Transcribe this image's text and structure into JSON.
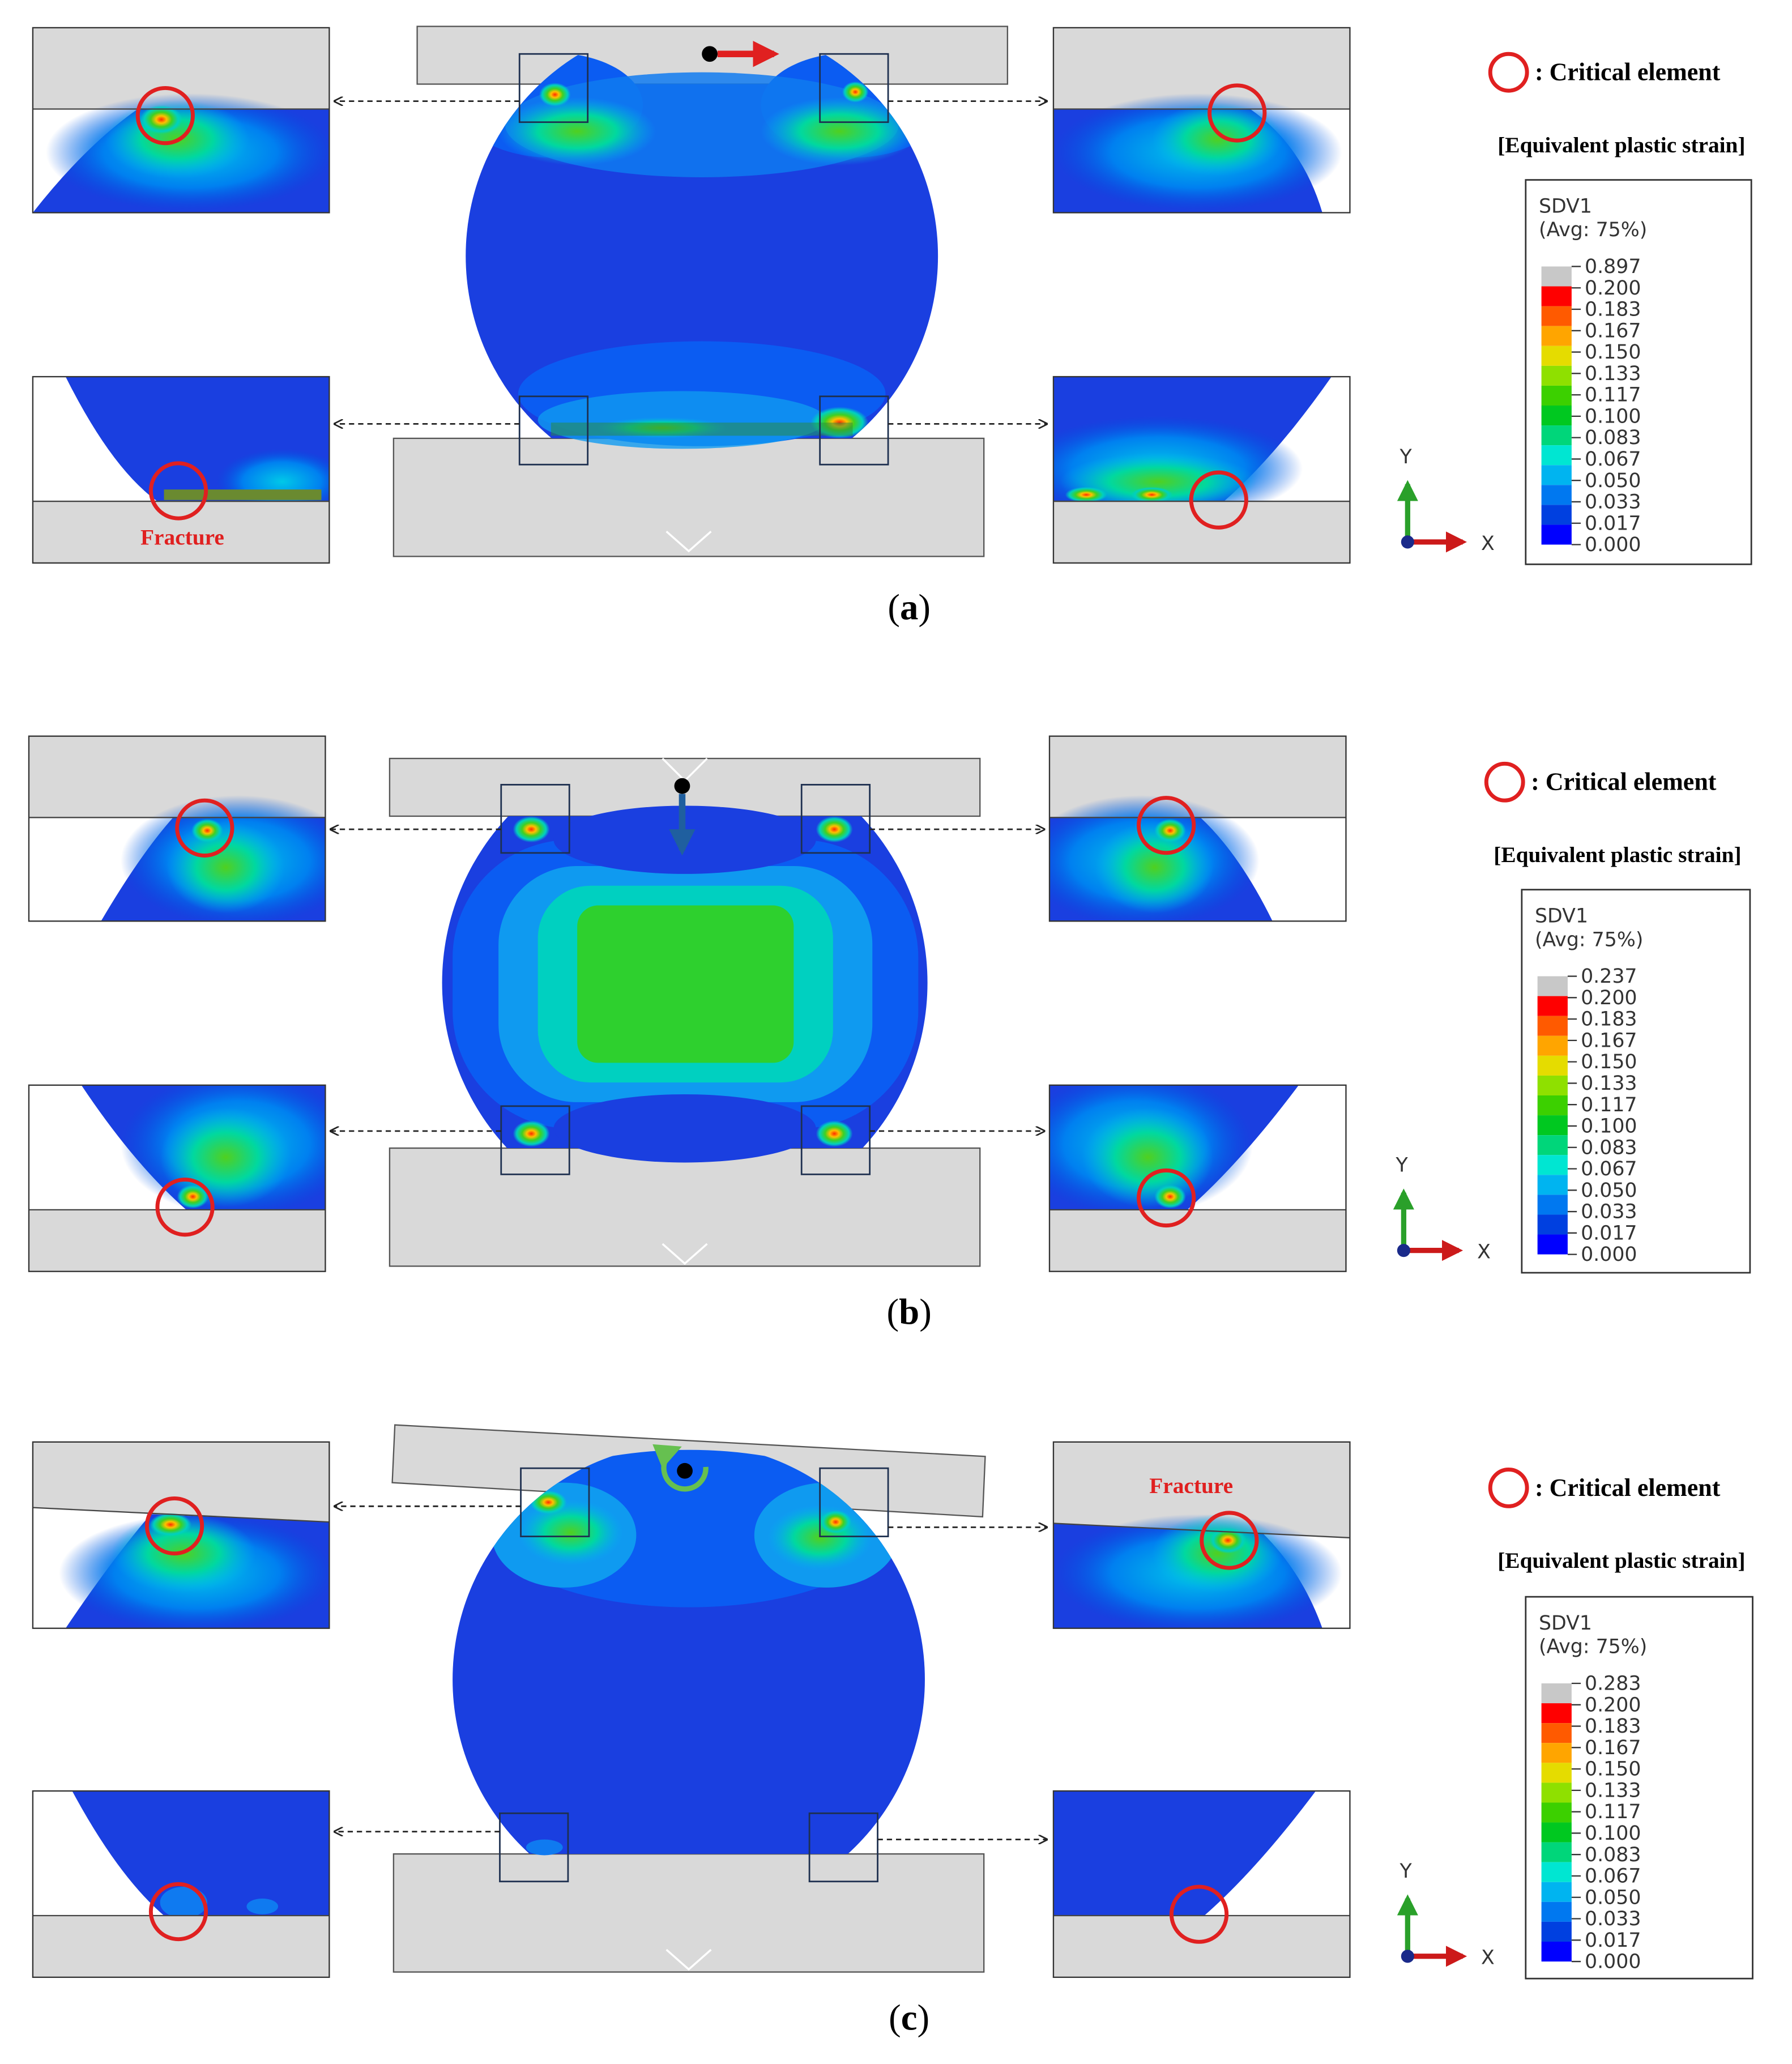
{
  "panels": [
    {
      "id": "a",
      "caption": "(a)",
      "caption_letter": "a",
      "legend_marker_label": ": Critical element",
      "legend_title": "[Equivalent plastic strain]",
      "variable": "SDV1",
      "averaging": "(Avg: 75%)",
      "values": [
        "0.897",
        "0.200",
        "0.183",
        "0.167",
        "0.150",
        "0.133",
        "0.117",
        "0.100",
        "0.083",
        "0.067",
        "0.050",
        "0.033",
        "0.017",
        "0.000"
      ],
      "fracture_label": "Fracture",
      "fracture_panel": "bottom-left",
      "loading": "shear-x"
    },
    {
      "id": "b",
      "caption": "(b)",
      "caption_letter": "b",
      "legend_marker_label": ": Critical element",
      "legend_title": "[Equivalent plastic strain]",
      "variable": "SDV1",
      "averaging": "(Avg: 75%)",
      "values": [
        "0.237",
        "0.200",
        "0.183",
        "0.167",
        "0.150",
        "0.133",
        "0.117",
        "0.100",
        "0.083",
        "0.067",
        "0.050",
        "0.033",
        "0.017",
        "0.000"
      ],
      "fracture_label": "",
      "fracture_panel": "",
      "loading": "compression-y"
    },
    {
      "id": "c",
      "caption": "(c)",
      "caption_letter": "c",
      "legend_marker_label": ": Critical element",
      "legend_title": "[Equivalent plastic strain]",
      "variable": "SDV1",
      "averaging": "(Avg: 75%)",
      "values": [
        "0.283",
        "0.200",
        "0.183",
        "0.167",
        "0.150",
        "0.133",
        "0.117",
        "0.100",
        "0.083",
        "0.067",
        "0.050",
        "0.033",
        "0.017",
        "0.000"
      ],
      "fracture_label": "Fracture",
      "fracture_panel": "top-right",
      "loading": "rotation"
    }
  ],
  "axis": {
    "y": "Y",
    "x": "X"
  },
  "legend_colors": [
    "#c8c8c8",
    "#ff0000",
    "#ff5a00",
    "#ffa500",
    "#e5dc00",
    "#8fe000",
    "#3cd000",
    "#00c820",
    "#00d67a",
    "#00e6d2",
    "#00b4f0",
    "#0078f0",
    "#0040e0",
    "#0000ff"
  ],
  "colors": {
    "platen": "#d9d9d9",
    "body_blue": "#1a3fe0",
    "critical_ring": "#e02020",
    "arrow_red": "#e02020",
    "arrow_blue": "#1f5f9f",
    "arrow_green": "#66c050"
  },
  "icons": {
    "critical_marker": "red-circle-icon",
    "shear": "red-right-arrow-icon",
    "compression": "blue-down-arrow-icon",
    "rotation": "green-rotation-icon"
  }
}
